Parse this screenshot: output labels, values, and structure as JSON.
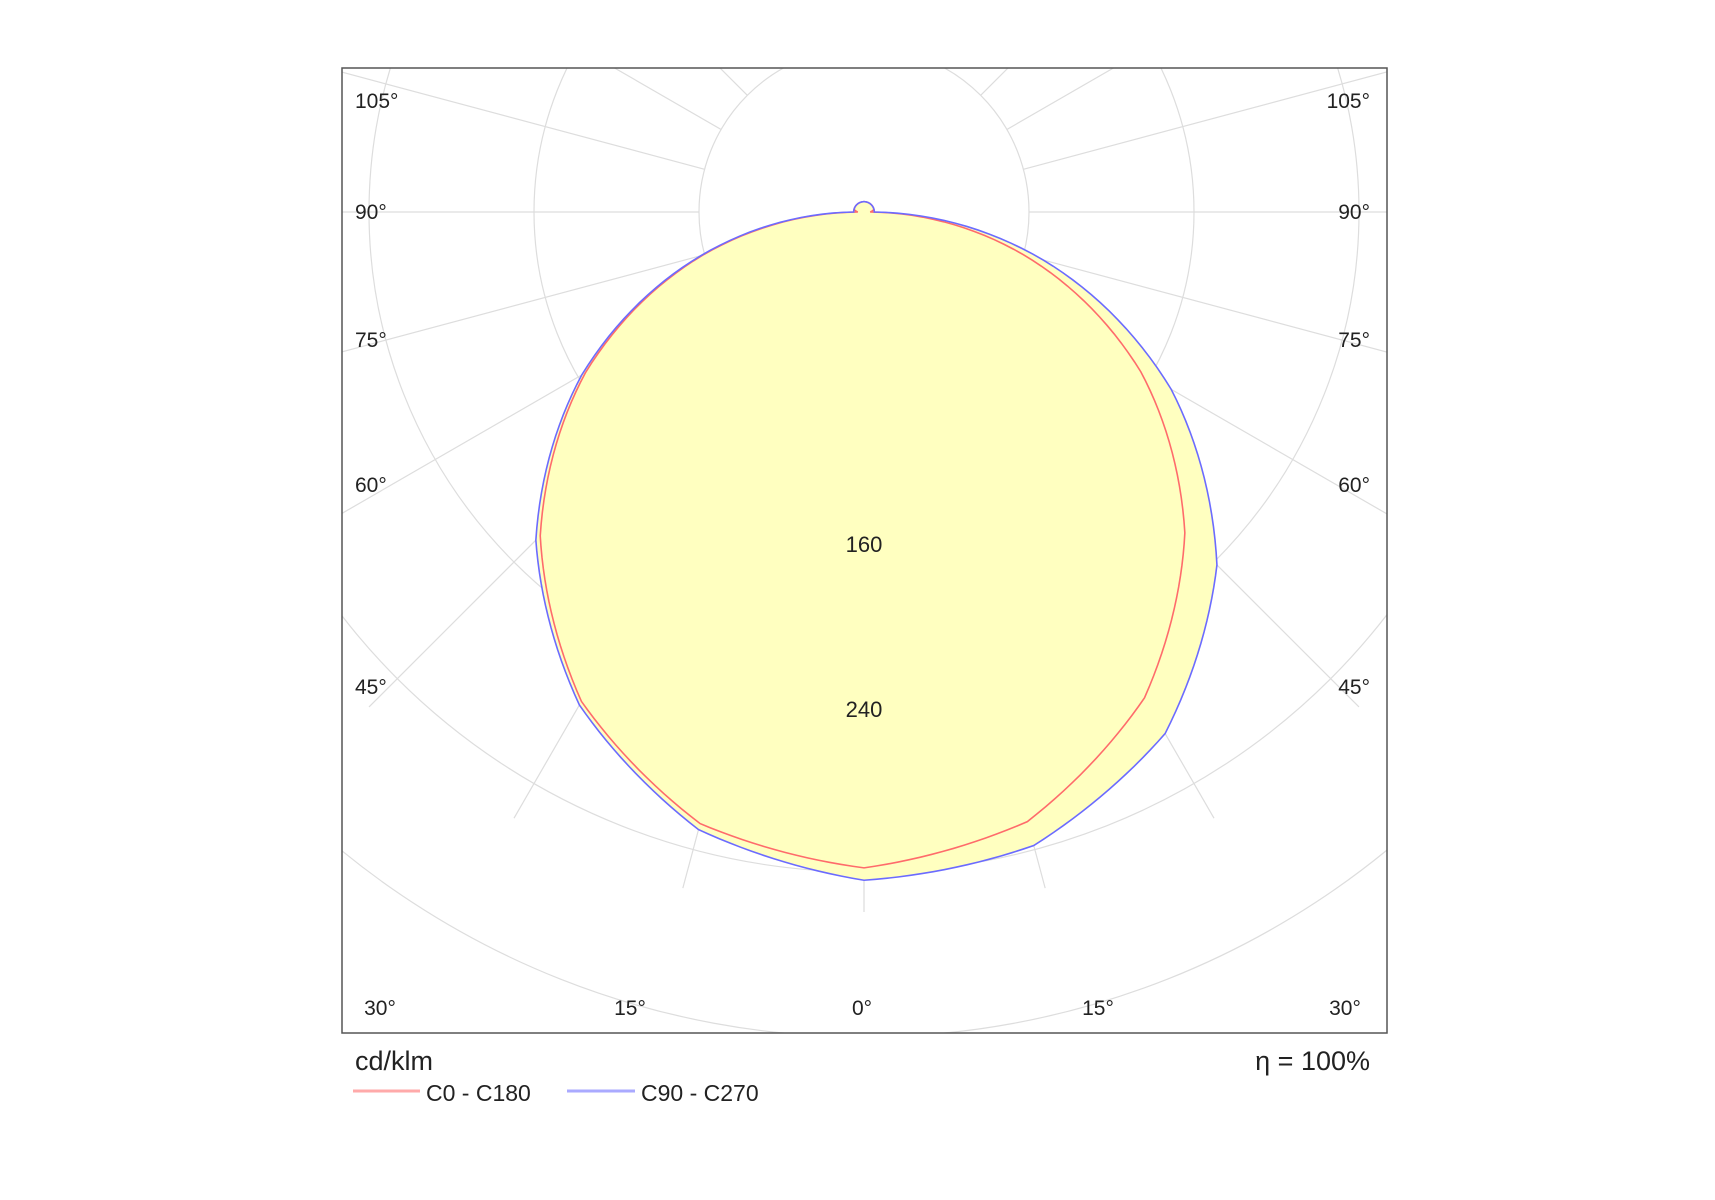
{
  "chart_data": {
    "type": "polar",
    "unit_label": "cd/klm",
    "efficiency_label": "η = 100%",
    "radial_ticks": [
      80,
      160,
      240,
      320,
      400,
      480
    ],
    "radial_tick_labels": [
      "160",
      "240"
    ],
    "angle_labels_side": [
      "105°",
      "90°",
      "75°",
      "60°",
      "45°"
    ],
    "angle_labels_bottom": [
      "30°",
      "15°",
      "0°",
      "15°",
      "30°"
    ],
    "grid": true,
    "legend_placement": "bottom-left",
    "gamma": [
      0,
      15,
      30,
      45,
      60,
      75,
      90,
      105,
      120,
      135,
      150,
      165,
      180
    ],
    "series": [
      {
        "name": "C0 - C180",
        "color": "#ff6b6b",
        "right": [
          318,
          306,
          272,
          220,
          155,
          80,
          3,
          5,
          5,
          5,
          5,
          5,
          5
        ],
        "left": [
          318,
          307,
          274,
          222,
          156,
          81,
          3,
          5,
          5,
          5,
          5,
          5,
          5
        ]
      },
      {
        "name": "C90 - C270",
        "color": "#6b6bff",
        "right": [
          324,
          318,
          292,
          242,
          172,
          90,
          5,
          5,
          5,
          5,
          5,
          5,
          5
        ],
        "left": [
          324,
          310,
          276,
          225,
          158,
          82,
          5,
          5,
          5,
          5,
          5,
          5,
          5
        ]
      }
    ],
    "fill_color": "#ffffc0"
  }
}
